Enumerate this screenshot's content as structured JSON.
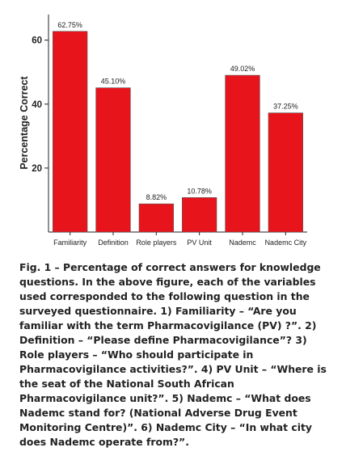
{
  "chart_data": {
    "type": "bar",
    "title": "",
    "xlabel": "",
    "ylabel": "Percentage Correct",
    "categories": [
      "Familiarity",
      "Definition",
      "Role players",
      "PV Unit",
      "Nademc",
      "Nademc City"
    ],
    "values": [
      62.75,
      45.1,
      8.82,
      10.78,
      49.02,
      37.25
    ],
    "data_labels": [
      "62.75%",
      "45.10%",
      "8.82%",
      "10.78%",
      "49.02%",
      "37.25%"
    ],
    "yticks": [
      20,
      40,
      60
    ],
    "ylim": [
      0,
      68
    ],
    "bar_color": "#e8141c",
    "grid": false,
    "legend": "none"
  },
  "caption": {
    "text": "Fig. 1 – Percentage of correct answers for knowledge questions. In the above figure, each of the variables used corresponded to the following question in the surveyed questionnaire. 1) Familiarity – “Are you familiar with the term Pharmacovigilance (PV) ?”. 2) Definition – “Please define Pharmacovigilance”? 3) Role players – “Who should participate in Pharmacovigilance activities?”. 4) PV Unit – “Where is the seat of the National South African Pharmacovigilance unit?”. 5) Nademc – “What does Nademc stand for? (National Adverse Drug Event Monitoring Centre)”. 6) Nademc City – “In what city does Nademc operate from?”."
  }
}
